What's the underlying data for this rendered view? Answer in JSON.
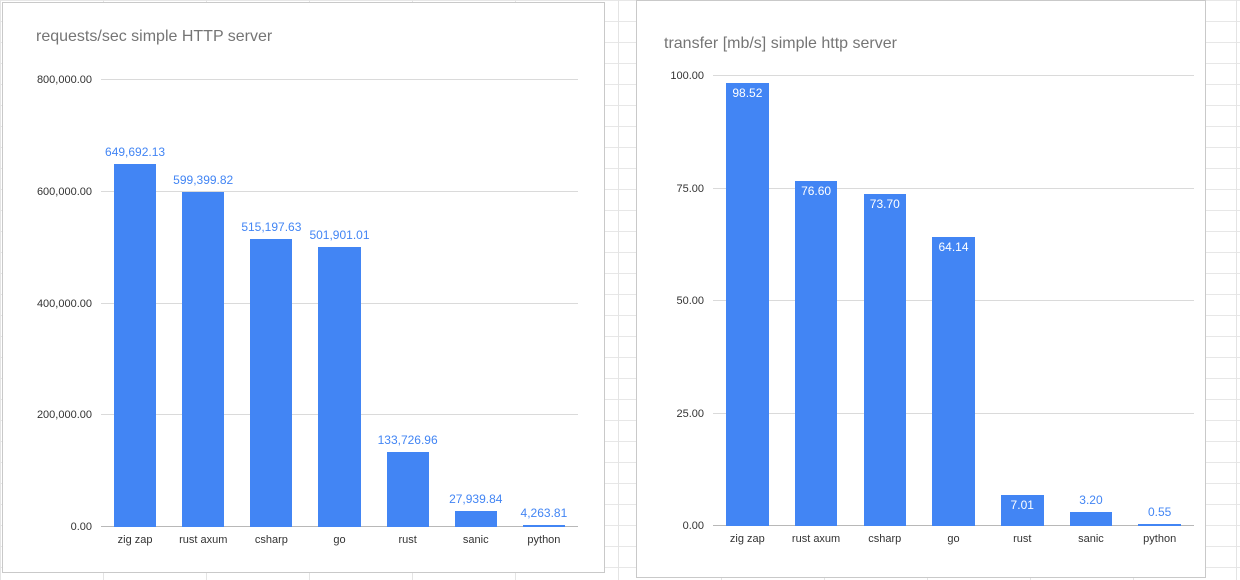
{
  "page": {
    "background": "#ffffff",
    "grid_color": "#e5e5e5"
  },
  "chart_data": [
    {
      "type": "bar",
      "title": "requests/sec simple HTTP server",
      "categories": [
        "zig zap",
        "rust axum",
        "csharp",
        "go",
        "rust",
        "sanic",
        "python"
      ],
      "values": [
        649692.13,
        599399.82,
        515197.63,
        501901.01,
        133726.96,
        27939.84,
        4263.81
      ],
      "value_labels": [
        "649,692.13",
        "599,399.82",
        "515,197.63",
        "501,901.01",
        "133,726.96",
        "27,939.84",
        "4,263.81"
      ],
      "ylim": [
        0,
        800000
      ],
      "yticks": [
        {
          "v": 0,
          "label": "0.00"
        },
        {
          "v": 200000,
          "label": "200,000.00"
        },
        {
          "v": 400000,
          "label": "400,000.00"
        },
        {
          "v": 600000,
          "label": "600,000.00"
        },
        {
          "v": 800000,
          "label": "800,000.00"
        }
      ],
      "label_placement": "above",
      "bar_color": "#4285f4",
      "label_color": "#4285f4",
      "grid": true,
      "legend": "none",
      "title_color": "#757575"
    },
    {
      "type": "bar",
      "title": "transfer [mb/s] simple http server",
      "categories": [
        "zig zap",
        "rust axum",
        "csharp",
        "go",
        "rust",
        "sanic",
        "python"
      ],
      "values": [
        98.52,
        76.6,
        73.7,
        64.14,
        7.01,
        3.2,
        0.55
      ],
      "value_labels": [
        "98.52",
        "76.60",
        "73.70",
        "64.14",
        "7.01",
        "3.20",
        "0.55"
      ],
      "ylim": [
        0,
        100
      ],
      "yticks": [
        {
          "v": 0,
          "label": "0.00"
        },
        {
          "v": 25,
          "label": "25.00"
        },
        {
          "v": 50,
          "label": "50.00"
        },
        {
          "v": 75,
          "label": "75.00"
        },
        {
          "v": 100,
          "label": "100.00"
        }
      ],
      "label_placement": "inside",
      "bar_color": "#4285f4",
      "label_color": "#4285f4",
      "grid": true,
      "legend": "none",
      "title_color": "#757575"
    }
  ]
}
